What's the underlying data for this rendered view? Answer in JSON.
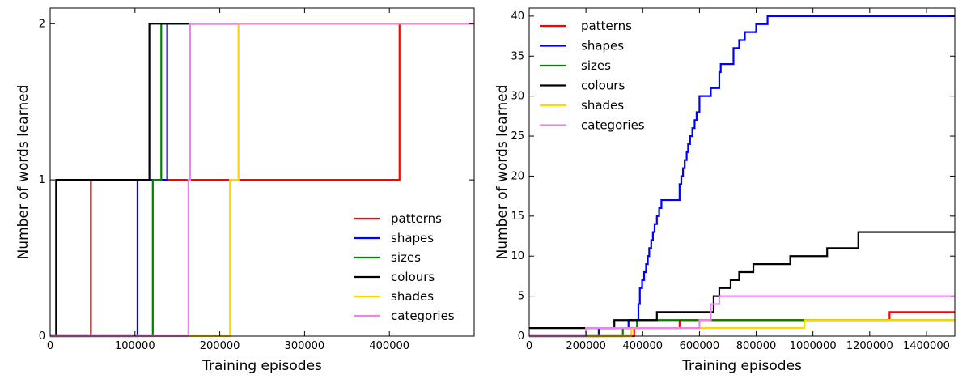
{
  "chart_data": [
    {
      "type": "line",
      "step": "post",
      "title": "",
      "xlabel": "Training episodes",
      "ylabel": "Number of words learned",
      "xlim": [
        0,
        500000
      ],
      "ylim": [
        0,
        2.1
      ],
      "xticks": [
        0,
        100000,
        200000,
        300000,
        400000
      ],
      "xtick_labels": [
        "0",
        "100000",
        "200000",
        "300000",
        "400000"
      ],
      "yticks": [
        0,
        1,
        2
      ],
      "ytick_labels": [
        "0",
        "1",
        "2"
      ],
      "grid": false,
      "legend_position": "lower-right",
      "series": [
        {
          "name": "patterns",
          "color": "#ff0000",
          "x": [
            0,
            48000,
            412000,
            500000
          ],
          "y": [
            0,
            1,
            2,
            2
          ]
        },
        {
          "name": "shapes",
          "color": "#0000ff",
          "x": [
            0,
            103000,
            138000,
            500000
          ],
          "y": [
            0,
            1,
            2,
            2
          ]
        },
        {
          "name": "sizes",
          "color": "#008000",
          "x": [
            0,
            121000,
            131000,
            500000
          ],
          "y": [
            0,
            1,
            2,
            2
          ]
        },
        {
          "name": "colours",
          "color": "#000000",
          "x": [
            0,
            7000,
            117000,
            500000
          ],
          "y": [
            0,
            1,
            2,
            2
          ]
        },
        {
          "name": "shades",
          "color": "#ffd700",
          "x": [
            0,
            212000,
            222000,
            500000
          ],
          "y": [
            0,
            1,
            2,
            2
          ]
        },
        {
          "name": "categories",
          "color": "#ee82ee",
          "x": [
            0,
            163000,
            165000,
            500000
          ],
          "y": [
            0,
            1,
            2,
            2
          ]
        }
      ]
    },
    {
      "type": "line",
      "step": "post",
      "title": "",
      "xlabel": "Training episodes",
      "ylabel": "Number of words learned",
      "xlim": [
        0,
        1500000
      ],
      "ylim": [
        0,
        41
      ],
      "xticks": [
        0,
        200000,
        400000,
        600000,
        800000,
        1000000,
        1200000,
        1400000
      ],
      "xtick_labels": [
        "0",
        "200000",
        "400000",
        "600000",
        "800000",
        "1000000",
        "1200000",
        "1400000"
      ],
      "yticks": [
        0,
        5,
        10,
        15,
        20,
        25,
        30,
        35,
        40
      ],
      "ytick_labels": [
        "0",
        "5",
        "10",
        "15",
        "20",
        "25",
        "30",
        "35",
        "40"
      ],
      "grid": false,
      "legend_position": "top-left",
      "series": [
        {
          "name": "patterns",
          "color": "#ff0000",
          "x": [
            0,
            370000,
            530000,
            1270000,
            1500000
          ],
          "y": [
            0,
            1,
            2,
            3,
            3
          ]
        },
        {
          "name": "shapes",
          "color": "#0000ff",
          "x": [
            0,
            245000,
            350000,
            385000,
            390000,
            398000,
            405000,
            412000,
            418000,
            423000,
            430000,
            436000,
            442000,
            450000,
            458000,
            466000,
            475000,
            485000,
            530000,
            536000,
            542000,
            548000,
            555000,
            560000,
            567000,
            575000,
            583000,
            590000,
            600000,
            640000,
            670000,
            675000,
            680000,
            690000,
            720000,
            740000,
            760000,
            800000,
            840000,
            1500000
          ],
          "y": [
            0,
            1,
            2,
            4,
            6,
            7,
            8,
            9,
            10,
            11,
            12,
            13,
            14,
            15,
            16,
            17,
            17,
            17,
            19,
            20,
            21,
            22,
            23,
            24,
            25,
            26,
            27,
            28,
            30,
            31,
            33,
            34,
            34,
            34,
            36,
            37,
            38,
            39,
            40,
            40
          ]
        },
        {
          "name": "sizes",
          "color": "#008000",
          "x": [
            0,
            330000,
            380000,
            970000,
            1500000
          ],
          "y": [
            0,
            1,
            2,
            2,
            2
          ]
        },
        {
          "name": "colours",
          "color": "#000000",
          "x": [
            0,
            25000,
            300000,
            450000,
            650000,
            670000,
            710000,
            740000,
            790000,
            920000,
            1050000,
            1160000,
            1500000
          ],
          "y": [
            1,
            1,
            2,
            3,
            5,
            6,
            7,
            8,
            9,
            10,
            11,
            13,
            13
          ]
        },
        {
          "name": "shades",
          "color": "#ffd700",
          "x": [
            0,
            360000,
            970000,
            1500000
          ],
          "y": [
            0,
            1,
            2,
            2
          ]
        },
        {
          "name": "categories",
          "color": "#ee82ee",
          "x": [
            0,
            200000,
            600000,
            640000,
            670000,
            1500000
          ],
          "y": [
            0,
            1,
            2,
            4,
            5,
            5
          ]
        }
      ]
    }
  ]
}
